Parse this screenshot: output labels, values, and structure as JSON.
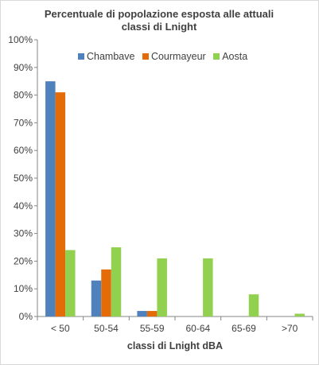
{
  "chart_data": {
    "type": "bar",
    "title_lines": [
      "Percentuale di popolazione esposta  alle attuali",
      "classi  di Lnight"
    ],
    "xlabel": "classi  di Lnight  dBA",
    "ylabel": "",
    "categories": [
      "< 50",
      "50-54",
      "55-59",
      "60-64",
      "65-69",
      ">70"
    ],
    "y_ticks": [
      "0%",
      "10%",
      "20%",
      "30%",
      "40%",
      "50%",
      "60%",
      "70%",
      "80%",
      "90%",
      "100%"
    ],
    "ylim": [
      0,
      100
    ],
    "grid": false,
    "legend_position": "top",
    "series": [
      {
        "name": "Chambave",
        "color": "#4f81bd",
        "values": [
          85,
          13,
          2,
          0,
          0,
          0
        ]
      },
      {
        "name": "Courmayeur",
        "color": "#e36c09",
        "values": [
          81,
          17,
          2,
          0,
          0,
          0
        ]
      },
      {
        "name": "Aosta",
        "color": "#92d050",
        "values": [
          24,
          25,
          21,
          21,
          8,
          1
        ]
      }
    ]
  }
}
